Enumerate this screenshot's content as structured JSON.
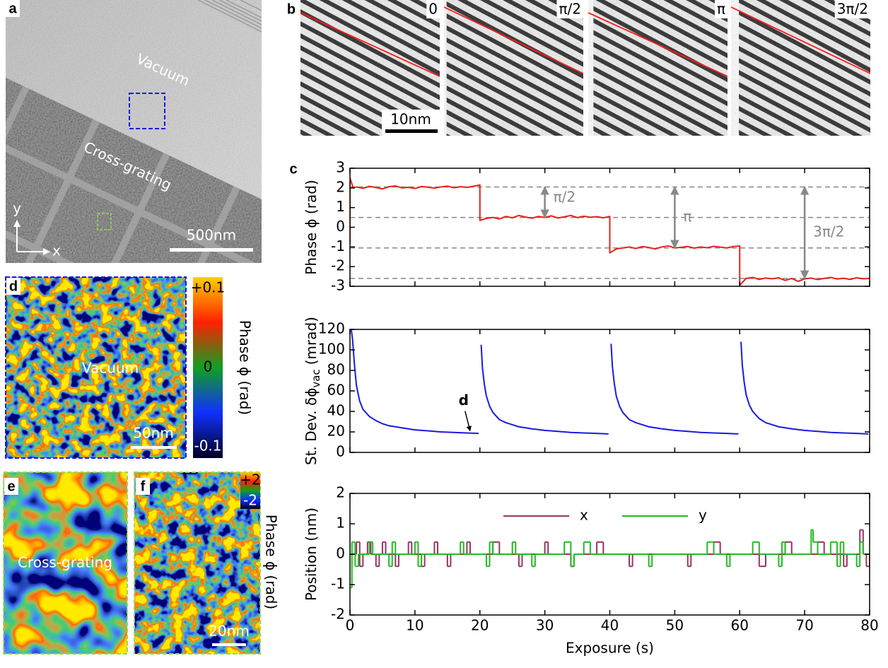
{
  "panels": {
    "a": {
      "label": "a",
      "vacuum": "Vacuum",
      "grating": "Cross-grating",
      "scalebar": "500nm",
      "axis_y": "y",
      "axis_x": "x"
    },
    "b": {
      "label": "b",
      "phases": [
        "0",
        "π/2",
        "π",
        "3π/2"
      ],
      "scalebar": "10nm"
    },
    "c": {
      "label": "c"
    },
    "d": {
      "label": "d",
      "text": "Vacuum",
      "scalebar": "50nm",
      "colorbar": {
        "ticks": [
          "+0.1",
          "0",
          "-0.1"
        ],
        "label": "Phase ϕ (rad)"
      }
    },
    "e": {
      "label": "e",
      "text": "Cross-grating"
    },
    "f": {
      "label": "f",
      "scalebar": "20nm",
      "colorbar": {
        "ticks": [
          "+2",
          "-2"
        ],
        "label": "Phase ϕ (rad)"
      }
    }
  },
  "chart_data": [
    {
      "type": "line",
      "ylabel": "Phase ϕ (rad)",
      "show_xticklabels": false,
      "xlim": [
        0,
        80
      ],
      "xticks": [
        0,
        10,
        20,
        30,
        40,
        50,
        60,
        70,
        80
      ],
      "ylim": [
        -3,
        3
      ],
      "yticks": [
        -3,
        -2,
        -1,
        0,
        1,
        2,
        3
      ],
      "hlines": [
        2.05,
        0.5,
        -1.05,
        -2.6
      ],
      "hline_color": "#888888",
      "arrows": [
        {
          "x": 30,
          "from": 0.5,
          "to": 2.05,
          "label": "π/2"
        },
        {
          "x": 50,
          "from": -1.05,
          "to": 2.05,
          "label": "π"
        },
        {
          "x": 70,
          "from": -2.6,
          "to": 2.05,
          "label": "3π/2"
        }
      ],
      "series": [
        {
          "color": "#e8201a",
          "x": [
            0,
            0,
            0.5,
            1,
            2,
            3,
            4,
            5,
            6,
            7,
            8,
            9,
            10,
            11,
            12,
            13,
            14,
            15,
            16,
            17,
            18,
            19,
            20,
            20,
            21,
            22,
            23,
            24,
            25,
            26,
            27,
            28,
            29,
            30,
            31,
            32,
            33,
            34,
            35,
            36,
            37,
            38,
            39,
            40,
            40,
            41,
            42,
            43,
            44,
            45,
            46,
            47,
            48,
            49,
            50,
            51,
            52,
            53,
            54,
            55,
            56,
            57,
            58,
            59,
            60,
            60,
            61,
            62,
            63,
            64,
            65,
            66,
            67,
            68,
            69,
            70,
            71,
            72,
            73,
            74,
            75,
            76,
            77,
            78,
            79,
            80
          ],
          "values": [
            -0.8,
            2.5,
            2.0,
            2.05,
            1.98,
            2.08,
            2.02,
            1.95,
            2.06,
            2.1,
            2.0,
            2.03,
            1.97,
            2.07,
            2.04,
            1.99,
            2.05,
            2.09,
            2.01,
            2.06,
            2.03,
            2.08,
            2.15,
            0.35,
            0.45,
            0.5,
            0.42,
            0.55,
            0.48,
            0.6,
            0.52,
            0.46,
            0.55,
            0.5,
            0.58,
            0.47,
            0.53,
            0.6,
            0.49,
            0.56,
            0.51,
            0.54,
            0.48,
            0.55,
            -1.3,
            -1.1,
            -1.05,
            -1.0,
            -1.08,
            -0.98,
            -1.03,
            -1.1,
            -1.0,
            -0.95,
            -1.05,
            -1.02,
            -0.98,
            -1.06,
            -1.0,
            -1.04,
            -0.97,
            -1.01,
            -1.05,
            -0.98,
            -0.95,
            -2.95,
            -2.6,
            -2.55,
            -2.65,
            -2.58,
            -2.62,
            -2.57,
            -2.7,
            -2.6,
            -2.75,
            -2.62,
            -2.58,
            -2.66,
            -2.6,
            -2.55,
            -2.63,
            -2.59,
            -2.65,
            -2.57,
            -2.62,
            -2.6
          ]
        }
      ]
    },
    {
      "type": "line",
      "ylabel": "St. Dev. δϕ",
      "ylabel_subscript": "vac",
      "ylabel_unit": "(mrad)",
      "show_xticklabels": false,
      "xlim": [
        0,
        80
      ],
      "xticks": [
        0,
        10,
        20,
        30,
        40,
        50,
        60,
        70,
        80
      ],
      "ylim": [
        0,
        120
      ],
      "yticks": [
        0,
        20,
        40,
        60,
        80,
        100,
        120
      ],
      "annotations": [
        {
          "label": "d",
          "x": 17.5,
          "y": 50,
          "tx": 18.5,
          "ty": 21
        }
      ],
      "series": [
        {
          "color": "#1a1ae0",
          "x": [
            0.2,
            0.4,
            0.7,
            1,
            1.5,
            2,
            3,
            4,
            5,
            6,
            8,
            10,
            12,
            14,
            16,
            18,
            19.8,
            20,
            20.2,
            20.4,
            20.7,
            21,
            21.5,
            22,
            23,
            24,
            25,
            26,
            28,
            30,
            32,
            34,
            36,
            38,
            39.8,
            40,
            40.2,
            40.4,
            40.7,
            41,
            41.5,
            42,
            43,
            44,
            45,
            46,
            48,
            50,
            52,
            54,
            56,
            58,
            59.8,
            60,
            60.2,
            60.4,
            60.7,
            61,
            61.5,
            62,
            63,
            64,
            65,
            66,
            68,
            70,
            72,
            74,
            76,
            78,
            79.8
          ],
          "values": [
            120,
            110,
            85,
            65,
            50,
            42,
            35,
            31,
            28,
            26,
            24,
            22,
            21,
            20,
            19.5,
            19,
            18.5,
            null,
            105,
            82,
            66,
            55,
            45,
            39,
            32,
            29,
            27,
            25,
            23,
            21.5,
            20.5,
            19.5,
            19,
            18.5,
            18,
            null,
            106,
            84,
            67,
            55,
            45,
            39,
            32,
            29,
            27,
            25,
            23,
            21.5,
            20.5,
            19.5,
            19,
            18.5,
            18,
            null,
            108,
            85,
            68,
            56,
            46,
            40,
            33,
            29,
            27,
            25,
            23,
            21.5,
            20.5,
            19.5,
            19,
            18.5,
            18
          ]
        }
      ]
    },
    {
      "type": "line",
      "step": true,
      "ylabel": "Position (nm)",
      "xlabel": "Exposure (s)",
      "show_xticklabels": true,
      "xlim": [
        0,
        80
      ],
      "xticks": [
        0,
        10,
        20,
        30,
        40,
        50,
        60,
        70,
        80
      ],
      "ylim": [
        -2,
        2
      ],
      "yticks": [
        -2,
        -1,
        0,
        1,
        2
      ],
      "series": [
        {
          "name": "x",
          "color": "#993366",
          "x": [
            0,
            1,
            1.5,
            2,
            2.7,
            3.2,
            4,
            4.5,
            5,
            5.5,
            7,
            7.5,
            9,
            9.5,
            11,
            11.5,
            13,
            13.5,
            15,
            15.5,
            18,
            18.5,
            22,
            23,
            26,
            26.5,
            30,
            30.5,
            34,
            34.5,
            38,
            39,
            43,
            43.5,
            52,
            52.5,
            56,
            57,
            63,
            64,
            67,
            68,
            72,
            73,
            76,
            76.5,
            78.5,
            79,
            79.5,
            80
          ],
          "values": [
            0,
            0.4,
            -0.4,
            0,
            0.4,
            0,
            -0.4,
            0,
            0.4,
            0,
            -0.4,
            0,
            0.4,
            0,
            -0.4,
            0,
            0.4,
            0,
            -0.4,
            0,
            0.4,
            0,
            0.4,
            0,
            -0.4,
            0,
            0.4,
            0,
            -0.4,
            0,
            0.4,
            0,
            -0.4,
            0,
            -0.4,
            0,
            0.4,
            0,
            -0.4,
            0,
            0.4,
            0,
            0.4,
            0,
            -0.4,
            0,
            0.8,
            0,
            -0.4,
            0
          ]
        },
        {
          "name": "y",
          "color": "#22bb22",
          "x": [
            0,
            0.3,
            0.8,
            1.3,
            3,
            3.5,
            6,
            6.5,
            7,
            10,
            10.5,
            11,
            17,
            17.5,
            21,
            21.5,
            22,
            25,
            25.5,
            28,
            28.5,
            33,
            34,
            34.5,
            36,
            37,
            46,
            46.5,
            55,
            56,
            58,
            58.5,
            62,
            63,
            66,
            66.5,
            67,
            71,
            71.3,
            72,
            74,
            75,
            75.5,
            76,
            78,
            78.5,
            79,
            80
          ],
          "values": [
            -1.1,
            0.4,
            -0.4,
            0,
            0.4,
            0,
            -0.4,
            0.4,
            0,
            0.4,
            -0.4,
            0,
            0.4,
            0,
            -0.4,
            0.4,
            0,
            0.4,
            0,
            -0.4,
            0,
            0.4,
            -0.4,
            0,
            0.4,
            0,
            -0.4,
            0,
            0.4,
            0,
            -0.4,
            0,
            0.4,
            0,
            -0.4,
            0.4,
            0,
            0.8,
            0.4,
            0,
            0.4,
            -0.4,
            0.4,
            0,
            -0.4,
            0.4,
            0,
            0
          ]
        }
      ]
    }
  ]
}
